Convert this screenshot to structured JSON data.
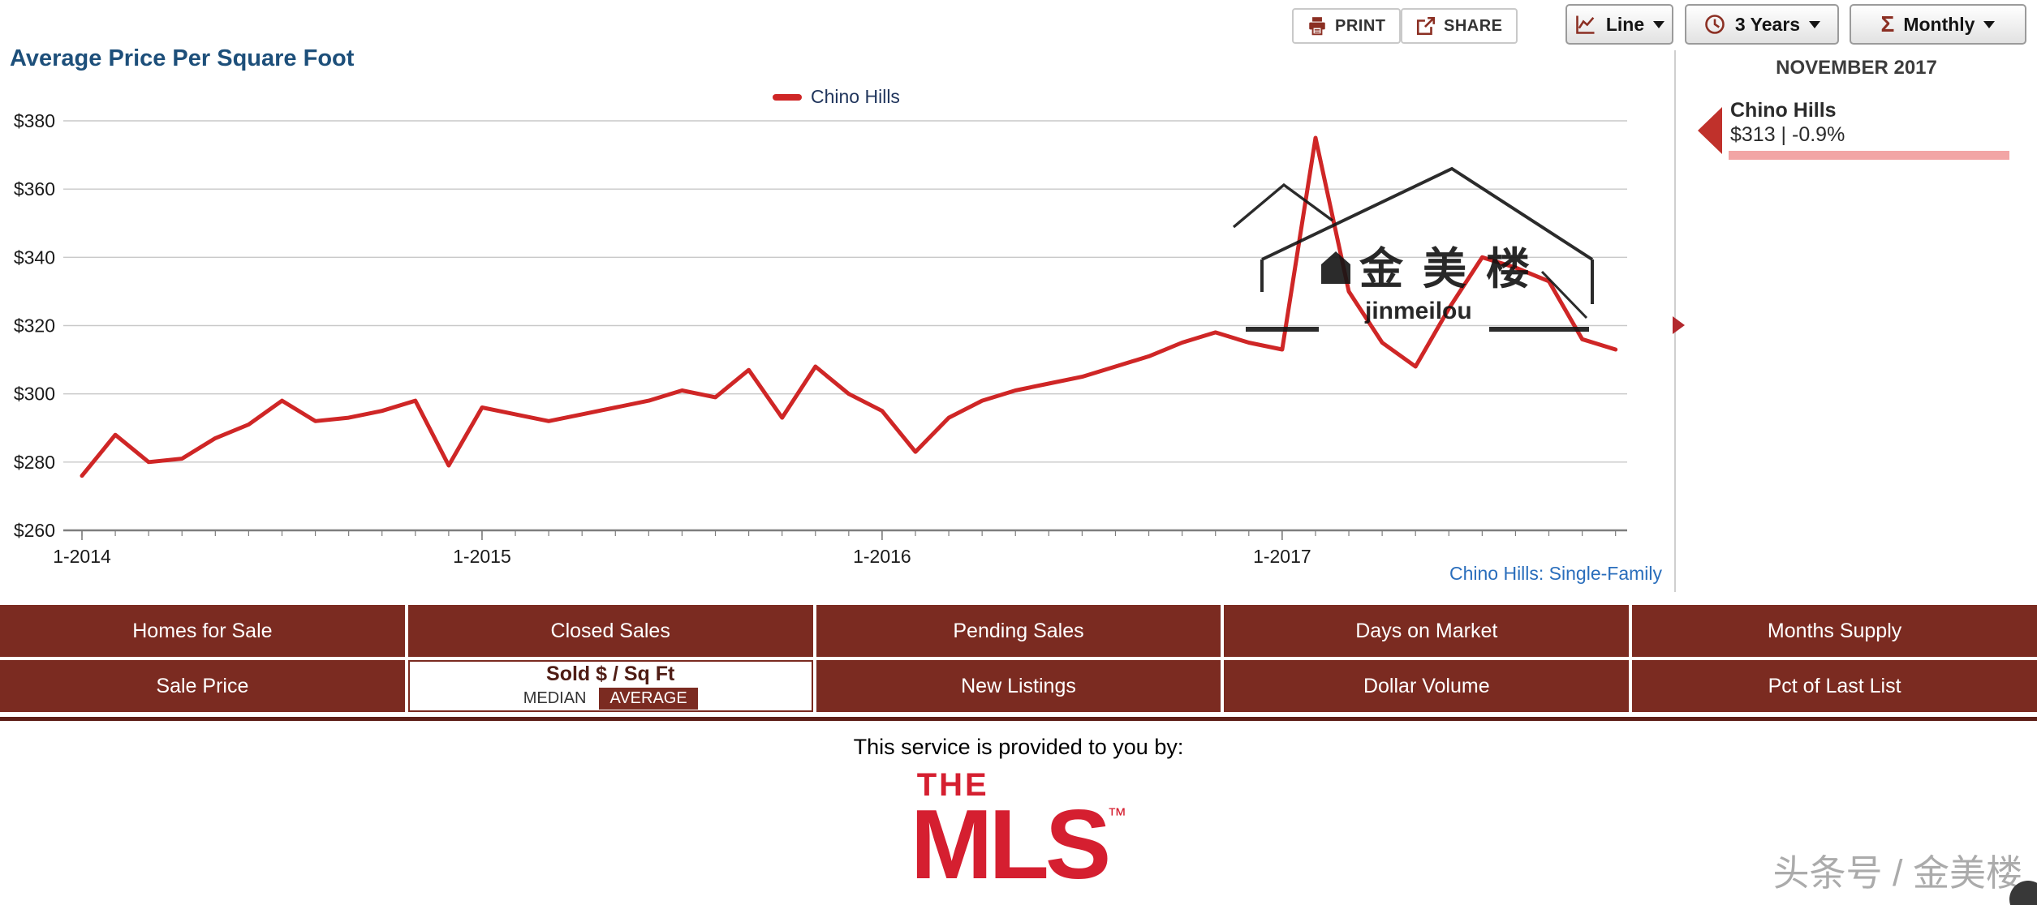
{
  "toolbar": {
    "print_label": "PRINT",
    "share_label": "SHARE",
    "dropdowns": [
      {
        "label": "Line",
        "icon": "line-chart-icon"
      },
      {
        "label": "3 Years",
        "icon": "clock-icon"
      },
      {
        "label": "Monthly",
        "icon": "sigma-icon"
      }
    ]
  },
  "chart": {
    "title": "Average Price Per Square Foot",
    "footer_link": "Chino Hills: Single-Family",
    "colors": {
      "line": "#cf2626",
      "title": "#1d4f7a",
      "link": "#2a6ebc",
      "accent": "#7b2b21"
    }
  },
  "chart_data": {
    "type": "line",
    "title": "Average Price Per Square Foot",
    "x": [
      "1-2014",
      "2-2014",
      "3-2014",
      "4-2014",
      "5-2014",
      "6-2014",
      "7-2014",
      "8-2014",
      "9-2014",
      "10-2014",
      "11-2014",
      "12-2014",
      "1-2015",
      "2-2015",
      "3-2015",
      "4-2015",
      "5-2015",
      "6-2015",
      "7-2015",
      "8-2015",
      "9-2015",
      "10-2015",
      "11-2015",
      "12-2015",
      "1-2016",
      "2-2016",
      "3-2016",
      "4-2016",
      "5-2016",
      "6-2016",
      "7-2016",
      "8-2016",
      "9-2016",
      "10-2016",
      "11-2016",
      "12-2016",
      "1-2017",
      "2-2017",
      "3-2017",
      "4-2017",
      "5-2017",
      "6-2017",
      "7-2017",
      "8-2017",
      "9-2017",
      "10-2017",
      "11-2017"
    ],
    "series": [
      {
        "name": "Chino Hills",
        "values": [
          276,
          288,
          280,
          281,
          287,
          291,
          298,
          292,
          293,
          295,
          298,
          279,
          296,
          294,
          292,
          294,
          296,
          298,
          301,
          299,
          307,
          293,
          308,
          300,
          295,
          283,
          293,
          298,
          301,
          303,
          305,
          308,
          311,
          315,
          318,
          315,
          313,
          375,
          330,
          315,
          308,
          325,
          340,
          337,
          333,
          316,
          313
        ]
      }
    ],
    "x_ticks": [
      "1-2014",
      "1-2015",
      "1-2016",
      "1-2017"
    ],
    "y_ticks": [
      380,
      360,
      340,
      320,
      300,
      280,
      260
    ],
    "y_tick_labels": [
      "$380",
      "$360",
      "$340",
      "$320",
      "$300",
      "$280",
      "$260"
    ],
    "ylim": [
      260,
      380
    ],
    "grid": true,
    "legend_position": "top-center"
  },
  "info_panel": {
    "month": "NOVEMBER 2017",
    "series_name": "Chino Hills",
    "value": "$313 | -0.9%"
  },
  "nav_table": {
    "rows": [
      [
        "Homes for Sale",
        "Closed Sales",
        "Pending Sales",
        "Days on Market",
        "Months Supply"
      ],
      [
        "Sale Price",
        "Sold $ / Sq Ft",
        "New Listings",
        "Dollar Volume",
        "Pct of Last List"
      ]
    ],
    "selected": "Sold $ / Sq Ft",
    "median_label": "MEDIAN",
    "average_label": "AVERAGE"
  },
  "footer": {
    "service_text": "This service is provided to you by:",
    "logo_the": "THE",
    "logo_mls": "MLS",
    "logo_tm": "™"
  },
  "watermarks": {
    "chart": {
      "cjk": "金美楼",
      "latin": "jinmeilou"
    },
    "corner": "头条号 / 金美楼"
  }
}
